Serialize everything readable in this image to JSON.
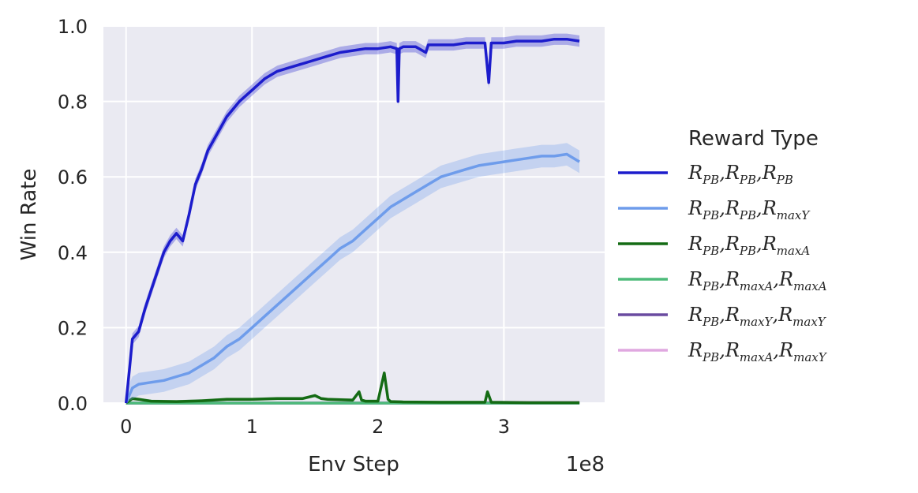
{
  "chart_data": {
    "type": "line",
    "title": "",
    "xlabel": "Env Step",
    "ylabel": "Win Rate",
    "x_scale_label": "1e8",
    "xlim": [
      -0.18,
      3.8
    ],
    "ylim": [
      0.0,
      1.0
    ],
    "x_ticks": [
      0,
      1,
      2,
      3
    ],
    "x_tick_labels": [
      "0",
      "1",
      "2",
      "3"
    ],
    "y_ticks": [
      0.0,
      0.2,
      0.4,
      0.6,
      0.8,
      1.0
    ],
    "y_tick_labels": [
      "0.0",
      "0.2",
      "0.4",
      "0.6",
      "0.8",
      "1.0"
    ],
    "grid": true,
    "background": "#eaeaf2",
    "legend": {
      "title": "Reward Type",
      "placement": "outside-right"
    },
    "series": [
      {
        "name": "R_PB, R_PB, R_PB",
        "label_parts": [
          [
            "R",
            "PB"
          ],
          [
            "R",
            "PB"
          ],
          [
            "R",
            "PB"
          ]
        ],
        "color": "#1c1ccc",
        "band": 0.015,
        "x": [
          0,
          0.03,
          0.05,
          0.1,
          0.15,
          0.2,
          0.25,
          0.3,
          0.35,
          0.4,
          0.45,
          0.5,
          0.55,
          0.6,
          0.65,
          0.7,
          0.8,
          0.9,
          1.0,
          1.1,
          1.2,
          1.3,
          1.4,
          1.5,
          1.6,
          1.7,
          1.8,
          1.9,
          2.0,
          2.1,
          2.15,
          2.16,
          2.17,
          2.2,
          2.3,
          2.38,
          2.4,
          2.5,
          2.6,
          2.7,
          2.85,
          2.88,
          2.9,
          3.0,
          3.1,
          3.2,
          3.3,
          3.4,
          3.5,
          3.6
        ],
        "y": [
          0,
          0.1,
          0.17,
          0.19,
          0.25,
          0.3,
          0.35,
          0.4,
          0.43,
          0.45,
          0.43,
          0.5,
          0.58,
          0.62,
          0.67,
          0.7,
          0.76,
          0.8,
          0.83,
          0.86,
          0.88,
          0.89,
          0.9,
          0.91,
          0.92,
          0.93,
          0.935,
          0.94,
          0.94,
          0.945,
          0.94,
          0.8,
          0.94,
          0.945,
          0.945,
          0.93,
          0.95,
          0.95,
          0.95,
          0.955,
          0.955,
          0.85,
          0.955,
          0.955,
          0.96,
          0.96,
          0.96,
          0.965,
          0.965,
          0.96
        ]
      },
      {
        "name": "R_PB, R_PB, R_maxY",
        "label_parts": [
          [
            "R",
            "PB"
          ],
          [
            "R",
            "PB"
          ],
          [
            "R",
            "maxY"
          ]
        ],
        "color": "#6e9ceb",
        "band": 0.03,
        "x": [
          0,
          0.05,
          0.1,
          0.2,
          0.3,
          0.4,
          0.5,
          0.6,
          0.7,
          0.8,
          0.9,
          1.0,
          1.1,
          1.2,
          1.3,
          1.4,
          1.5,
          1.6,
          1.7,
          1.8,
          1.9,
          2.0,
          2.1,
          2.2,
          2.3,
          2.4,
          2.5,
          2.6,
          2.7,
          2.8,
          2.9,
          3.0,
          3.1,
          3.2,
          3.3,
          3.4,
          3.5,
          3.6
        ],
        "y": [
          0,
          0.04,
          0.05,
          0.055,
          0.06,
          0.07,
          0.08,
          0.1,
          0.12,
          0.15,
          0.17,
          0.2,
          0.23,
          0.26,
          0.29,
          0.32,
          0.35,
          0.38,
          0.41,
          0.43,
          0.46,
          0.49,
          0.52,
          0.54,
          0.56,
          0.58,
          0.6,
          0.61,
          0.62,
          0.63,
          0.635,
          0.64,
          0.645,
          0.65,
          0.655,
          0.655,
          0.66,
          0.64
        ]
      },
      {
        "name": "R_PB, R_PB, R_maxA",
        "label_parts": [
          [
            "R",
            "PB"
          ],
          [
            "R",
            "PB"
          ],
          [
            "R",
            "maxA"
          ]
        ],
        "color": "#146b14",
        "band": 0.004,
        "x": [
          0,
          0.05,
          0.1,
          0.2,
          0.4,
          0.6,
          0.8,
          1.0,
          1.2,
          1.4,
          1.5,
          1.55,
          1.6,
          1.8,
          1.85,
          1.87,
          1.9,
          2.0,
          2.05,
          2.08,
          2.1,
          2.2,
          2.5,
          2.85,
          2.87,
          2.9,
          3.2,
          3.6
        ],
        "y": [
          0,
          0.012,
          0.01,
          0.005,
          0.004,
          0.006,
          0.01,
          0.01,
          0.012,
          0.012,
          0.02,
          0.012,
          0.01,
          0.008,
          0.03,
          0.008,
          0.005,
          0.005,
          0.08,
          0.01,
          0.004,
          0.003,
          0.002,
          0.002,
          0.03,
          0.002,
          0.001,
          0.001
        ]
      },
      {
        "name": "R_PB, R_maxA, R_maxA",
        "label_parts": [
          [
            "R",
            "PB"
          ],
          [
            "R",
            "maxA"
          ],
          [
            "R",
            "maxA"
          ]
        ],
        "color": "#4dbb7a",
        "band": 0.001,
        "x": [
          0,
          3.6
        ],
        "y": [
          0,
          0
        ]
      },
      {
        "name": "R_PB, R_maxY, R_maxY",
        "label_parts": [
          [
            "R",
            "PB"
          ],
          [
            "R",
            "maxY"
          ],
          [
            "R",
            "maxY"
          ]
        ],
        "color": "#6a4ba0",
        "band": 0.001,
        "x": [
          0,
          3.6
        ],
        "y": [
          0,
          0
        ]
      },
      {
        "name": "R_PB, R_maxA, R_maxY",
        "label_parts": [
          [
            "R",
            "PB"
          ],
          [
            "R",
            "maxA"
          ],
          [
            "R",
            "maxY"
          ]
        ],
        "color": "#e0a8e0",
        "band": 0.001,
        "x": [
          0,
          2.6,
          3.0,
          3.6
        ],
        "y": [
          0,
          0.001,
          0.002,
          0.002
        ]
      }
    ]
  }
}
